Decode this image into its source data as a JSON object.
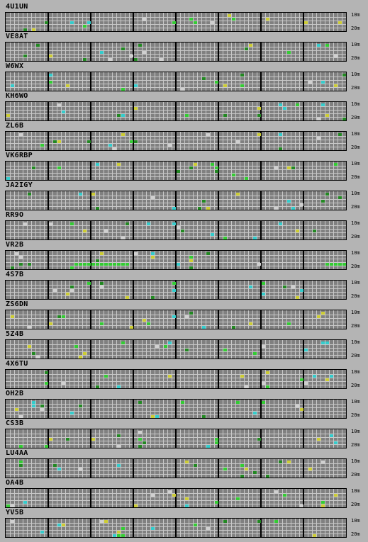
{
  "band_labels": {
    "top": "10m",
    "bottom": "20m"
  },
  "colors": {
    "green": "#33cc33",
    "yellow": "#cccc33",
    "cyan": "#33cccc",
    "gray": "#d0d0d0",
    "dark_green": "#228822"
  },
  "stations": [
    {
      "call": "4U1UN"
    },
    {
      "call": "VE8AT"
    },
    {
      "call": "W6WX"
    },
    {
      "call": "KH6WO"
    },
    {
      "call": "ZL6B"
    },
    {
      "call": "VK6RBP"
    },
    {
      "call": "JA2IGY"
    },
    {
      "call": "RR9O"
    },
    {
      "call": "VR2B"
    },
    {
      "call": "4S7B"
    },
    {
      "call": "ZS6DN"
    },
    {
      "call": "5Z4B"
    },
    {
      "call": "4X6TU"
    },
    {
      "call": "OH2B"
    },
    {
      "call": "CS3B"
    },
    {
      "call": "LU4AA"
    },
    {
      "call": "OA4B"
    },
    {
      "call": "YV5B"
    }
  ]
}
